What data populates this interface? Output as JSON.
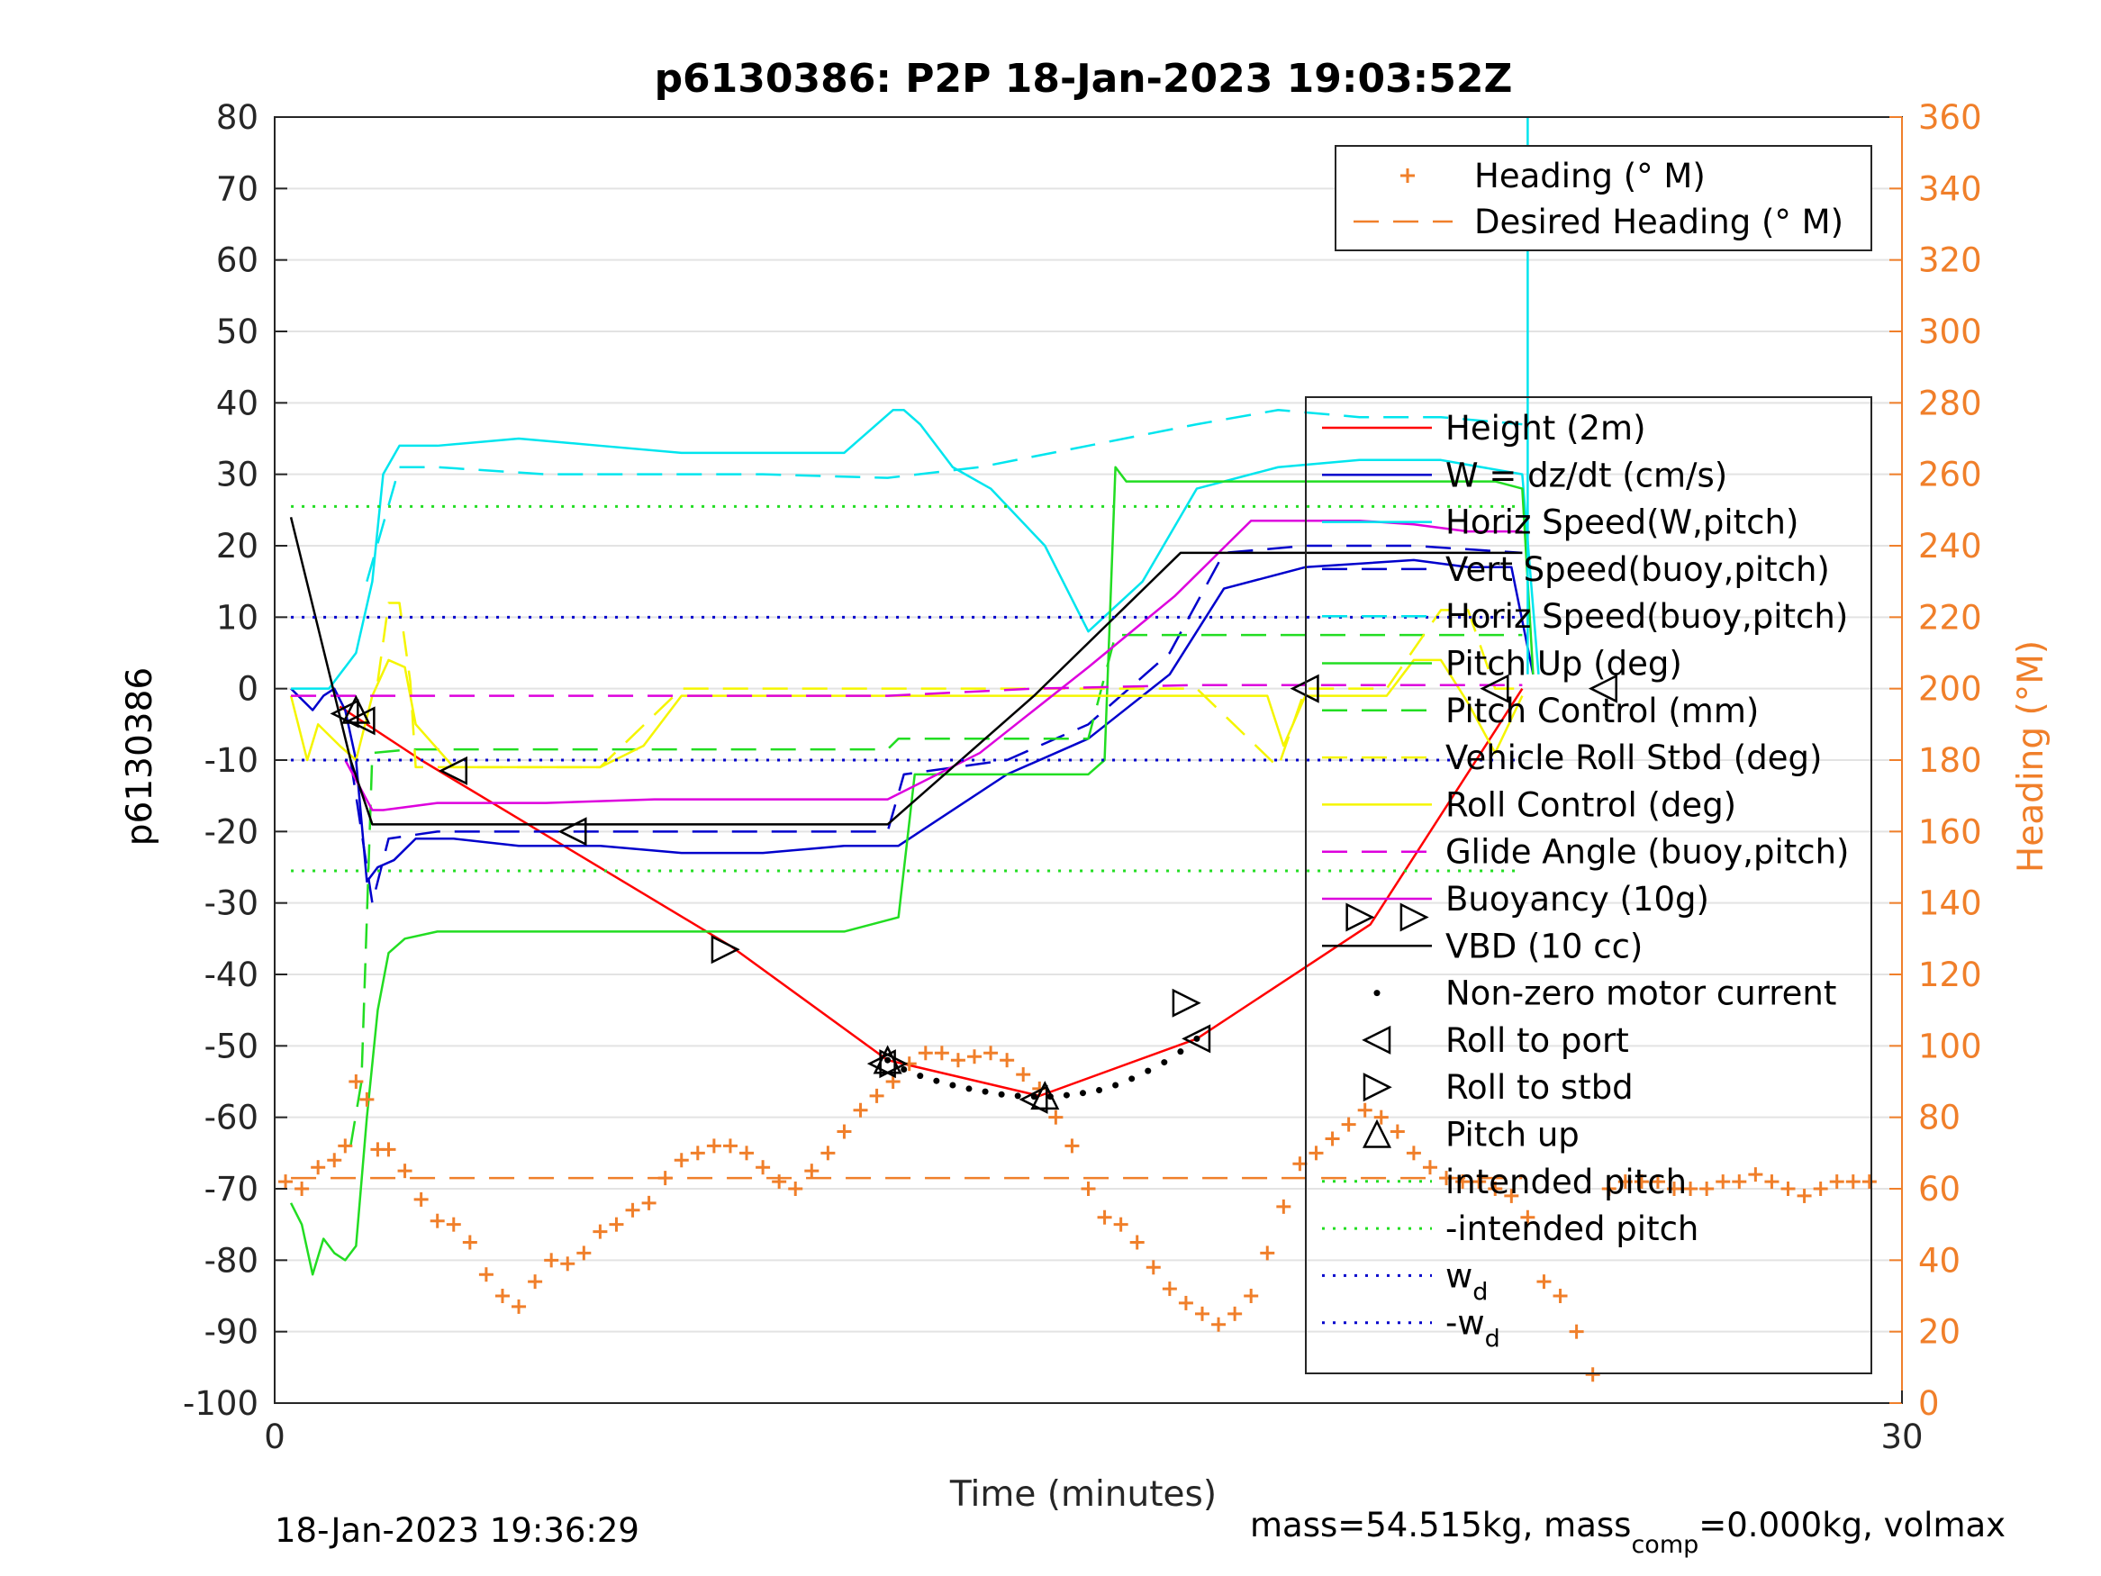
{
  "chart_data": {
    "type": "line",
    "title": "p6130386: P2P 18-Jan-2023 19:03:52Z",
    "xlabel": "Time (minutes)",
    "ylabel_left": "p6130386",
    "ylabel_right": "Heading (°M)",
    "xlim": [
      0,
      30
    ],
    "ylim_left": [
      -100,
      80
    ],
    "ylim_right": [
      0,
      360
    ],
    "x_ticks": [
      "0",
      "30"
    ],
    "y_ticks_left": [
      "80",
      "70",
      "60",
      "50",
      "40",
      "30",
      "20",
      "10",
      "0",
      "-10",
      "-20",
      "-30",
      "-40",
      "-50",
      "-60",
      "-70",
      "-80",
      "-90",
      "-100"
    ],
    "y_ticks_right": [
      "360",
      "340",
      "320",
      "300",
      "280",
      "260",
      "240",
      "220",
      "200",
      "180",
      "160",
      "140",
      "120",
      "100",
      "80",
      "60",
      "40",
      "20",
      "0"
    ],
    "grid": true,
    "footer_left": "18-Jan-2023 19:36:29",
    "footer_right": {
      "a": "mass=54.515kg, mass",
      "sub": "comp",
      "b": "=0.000kg, volmax"
    },
    "legend_top": [
      {
        "label": "Heading (° M)",
        "color": "#f07f2a",
        "style": "plus"
      },
      {
        "label": "Desired Heading (° M)",
        "color": "#f07f2a",
        "style": "dashed"
      }
    ],
    "legend_main": [
      {
        "label": "Height (2m)",
        "color": "#ff0000",
        "style": "solid"
      },
      {
        "label": "W = dz/dt (cm/s)",
        "color": "#0000cc",
        "style": "solid"
      },
      {
        "label": "Horiz Speed(W,pitch)",
        "color": "#00e5ee",
        "style": "solid"
      },
      {
        "label": "Vert Speed(buoy,pitch)",
        "color": "#0000cc",
        "style": "dashed"
      },
      {
        "label": "Horiz Speed(buoy,pitch)",
        "color": "#00e5ee",
        "style": "dashed"
      },
      {
        "label": "Pitch Up (deg)",
        "color": "#22dd22",
        "style": "solid"
      },
      {
        "label": "Pitch Control (mm)",
        "color": "#22dd22",
        "style": "dashed"
      },
      {
        "label": "Vehicle Roll Stbd (deg)",
        "color": "#f5f500",
        "style": "dashed"
      },
      {
        "label": "Roll Control (deg)",
        "color": "#f5f500",
        "style": "solid"
      },
      {
        "label": "Glide Angle (buoy,pitch)",
        "color": "#dd00dd",
        "style": "dashed"
      },
      {
        "label": "Buoyancy (10g)",
        "color": "#dd00dd",
        "style": "solid"
      },
      {
        "label": "VBD (10 cc)",
        "color": "#000000",
        "style": "solid"
      },
      {
        "label": "Non-zero motor current",
        "color": "#000000",
        "style": "dot"
      },
      {
        "label": "Roll to port",
        "color": "#000000",
        "style": "tri-left"
      },
      {
        "label": "Roll to stbd",
        "color": "#000000",
        "style": "tri-right"
      },
      {
        "label": "Pitch up",
        "color": "#000000",
        "style": "tri-up"
      },
      {
        "label": "intended pitch",
        "color": "#22dd22",
        "style": "dotted"
      },
      {
        "label": "-intended pitch",
        "color": "#22dd22",
        "style": "dotted"
      },
      {
        "label": "w",
        "sub": "d",
        "color": "#0000cc",
        "style": "dotted"
      },
      {
        "label": "-w",
        "sub": "d",
        "color": "#0000cc",
        "style": "dotted"
      }
    ],
    "series": [
      {
        "name": "Height (2m)",
        "color": "#ff0000",
        "style": "solid",
        "x": [
          1.2,
          2.7,
          8.4,
          11.3,
          14.1,
          17.0,
          20.2,
          23.0
        ],
        "y": [
          -2.5,
          -10,
          -36,
          -52,
          -57,
          -49,
          -33,
          0
        ]
      },
      {
        "name": "W = dz/dt (cm/s)",
        "color": "#0000cc",
        "style": "solid",
        "x": [
          0.3,
          0.7,
          0.9,
          1.1,
          1.3,
          1.5,
          1.7,
          1.9,
          2.2,
          2.6,
          3.3,
          4.5,
          6.0,
          7.5,
          9.0,
          10.5,
          11.5,
          13.5,
          15.0,
          16.5,
          17.5,
          19.0,
          21.0,
          22.0,
          22.8,
          23.2
        ],
        "y": [
          0,
          -3,
          -1,
          0,
          -3,
          -10,
          -27,
          -25,
          -24,
          -21,
          -21,
          -22,
          -22,
          -23,
          -23,
          -22,
          -22,
          -12,
          -7,
          2,
          14,
          17,
          18,
          17,
          17,
          2
        ]
      },
      {
        "name": "Horiz Speed(W,pitch)",
        "color": "#00e5ee",
        "style": "solid",
        "x": [
          0.3,
          1.0,
          1.5,
          1.8,
          2.0,
          2.3,
          3.0,
          4.5,
          6.0,
          7.5,
          9.0,
          10.5,
          11.4,
          11.6,
          11.9,
          12.5,
          13.2,
          14.2,
          15.0,
          16.0,
          17.0,
          18.5,
          20.0,
          21.5,
          23.0,
          23.3
        ],
        "y": [
          0,
          0,
          5,
          15,
          30,
          34,
          34,
          35,
          34,
          33,
          33,
          33,
          39,
          39,
          37,
          31,
          28,
          20,
          8,
          15,
          28,
          31,
          32,
          32,
          30,
          2
        ]
      },
      {
        "name": "Vert Speed(buoy,pitch)",
        "color": "#0000cc",
        "style": "dashed",
        "x": [
          1.4,
          1.8,
          2.1,
          3.0,
          5.0,
          7.0,
          9.0,
          11.3,
          11.6,
          13.5,
          15.0,
          16.5,
          17.5,
          19.0,
          21.0,
          23.0
        ],
        "y": [
          -10,
          -30,
          -21,
          -20,
          -20,
          -20,
          -20,
          -20,
          -12,
          -10,
          -5,
          5,
          19,
          20,
          20,
          19
        ]
      },
      {
        "name": "Horiz Speed(buoy,pitch)",
        "color": "#00e5ee",
        "style": "dashed",
        "x": [
          1.7,
          2.3,
          3.0,
          5.0,
          7.0,
          9.0,
          11.3,
          13.0,
          15.0,
          17.0,
          18.5,
          20.0,
          21.5,
          23.0
        ],
        "y": [
          15,
          31,
          31,
          30,
          30,
          30,
          29.5,
          31,
          34,
          37,
          39,
          38,
          38,
          37
        ]
      },
      {
        "name": "Pitch Up (deg)",
        "color": "#22dd22",
        "style": "solid",
        "x": [
          0.3,
          0.5,
          0.7,
          0.9,
          1.1,
          1.3,
          1.5,
          1.7,
          1.9,
          2.1,
          2.4,
          3.0,
          4.5,
          6.0,
          7.5,
          9.0,
          10.5,
          11.5,
          11.8,
          12.5,
          14.0,
          15.0,
          15.3,
          15.5,
          15.7,
          16.5,
          18.0,
          19.5,
          21.0,
          22.5,
          23.0,
          23.2
        ],
        "y": [
          -72,
          -75,
          -82,
          -77,
          -79,
          -80,
          -78,
          -60,
          -45,
          -37,
          -35,
          -34,
          -34,
          -34,
          -34,
          -34,
          -34,
          -32,
          -12,
          -12,
          -12,
          -12,
          -10,
          31,
          29,
          29,
          29,
          29,
          29,
          29,
          28,
          2
        ]
      },
      {
        "name": "Pitch Control (mm)",
        "color": "#22dd22",
        "style": "dashed",
        "x": [
          1.4,
          1.6,
          1.8,
          2.5,
          4.0,
          6.0,
          8.0,
          10.0,
          11.3,
          11.5,
          13.0,
          15.0,
          15.5,
          17.0,
          19.0,
          21.0,
          23.0
        ],
        "y": [
          -64,
          -55,
          -9,
          -8.5,
          -8.5,
          -8.5,
          -8.5,
          -8.5,
          -8.5,
          -7,
          -7,
          -7,
          7.5,
          7.5,
          7.5,
          7.5,
          7.5
        ]
      },
      {
        "name": "Vehicle Roll Stbd (deg)",
        "color": "#f5f500",
        "style": "dashed",
        "x": [
          1.9,
          2.1,
          2.3,
          2.5,
          2.6,
          3.3,
          4.5,
          6.0,
          7.5,
          9.0,
          10.5,
          11.5,
          13.0,
          15.0,
          17.0,
          18.5,
          19.0,
          20.5,
          21.5,
          22.0,
          22.5,
          23.0
        ],
        "y": [
          1,
          12,
          12,
          1,
          -11,
          -11,
          -11,
          -11,
          0,
          0,
          0,
          0,
          0,
          0,
          0,
          -11,
          0,
          0,
          11,
          11,
          0,
          0
        ]
      },
      {
        "name": "Roll Control (deg)",
        "color": "#f5f500",
        "style": "solid",
        "x": [
          0.3,
          0.6,
          0.8,
          1.2,
          1.5,
          1.8,
          2.1,
          2.4,
          2.6,
          3.3,
          4.5,
          6.0,
          6.8,
          7.5,
          9.0,
          10.5,
          11.5,
          13.0,
          15.0,
          17.0,
          18.3,
          18.6,
          19.0,
          20.5,
          21.0,
          21.5,
          22.0,
          22.5,
          23.0
        ],
        "y": [
          -1,
          -10,
          -5,
          -8,
          -10,
          -1,
          4,
          3,
          -5,
          -11,
          -11,
          -11,
          -8,
          -1,
          -1,
          -1,
          -1,
          -1,
          -1,
          -1,
          -1,
          -8,
          -1,
          -1,
          4,
          4,
          -2,
          -9,
          -1
        ]
      },
      {
        "name": "Glide Angle (buoy,pitch)",
        "color": "#dd00dd",
        "style": "dashed",
        "x": [
          0.3,
          2.0,
          5.0,
          8.0,
          11.3,
          14.0,
          17.0,
          20.0,
          23.0
        ],
        "y": [
          -1,
          -1,
          -1,
          -1,
          -1,
          0,
          0.5,
          0.5,
          0.5
        ]
      },
      {
        "name": "Buoyancy (10g)",
        "color": "#dd00dd",
        "style": "solid",
        "x": [
          1.3,
          1.8,
          2.0,
          3.0,
          5.0,
          7.0,
          9.0,
          11.3,
          13.0,
          15.0,
          16.6,
          18.0,
          20.0,
          21.0,
          22.0,
          23.0
        ],
        "y": [
          -10,
          -17,
          -17,
          -16,
          -16,
          -15.5,
          -15.5,
          -15.5,
          -9,
          3,
          13,
          23.5,
          23.5,
          23,
          22,
          22
        ]
      },
      {
        "name": "VBD (10 cc)",
        "color": "#000000",
        "style": "solid",
        "x": [
          0.3,
          1.4,
          1.8,
          5.0,
          8.0,
          11.3,
          14.0,
          16.7,
          18.0,
          21.0,
          23.0
        ],
        "y": [
          24,
          -10,
          -19,
          -19,
          -19,
          -19,
          -1,
          19,
          19,
          19,
          19
        ]
      },
      {
        "name": "Non-zero motor current",
        "color": "#000000",
        "style": "dot",
        "x": [
          11.3,
          11.6,
          11.9,
          12.2,
          12.5,
          12.8,
          13.1,
          13.4,
          13.7,
          14.0,
          14.3,
          14.6,
          14.9,
          15.2,
          15.5,
          15.8,
          16.1,
          16.4,
          16.7,
          17.0
        ],
        "y": [
          -52,
          -53.3,
          -54.2,
          -54.9,
          -55.5,
          -56,
          -56.4,
          -56.8,
          -57,
          -57.1,
          -57.1,
          -56.9,
          -56.6,
          -56.2,
          -55.5,
          -54.6,
          -53.5,
          -52.3,
          -50.8,
          -49
        ]
      },
      {
        "name": "Roll to port",
        "color": "#000000",
        "style": "tri-left",
        "x": [
          1.3,
          1.6,
          3.3,
          5.5,
          11.2,
          14.0,
          17.0,
          22.5,
          24.5,
          19.0
        ],
        "y": [
          -3.5,
          -4.5,
          -11.5,
          -20,
          -52.5,
          -57.5,
          -49,
          0,
          0,
          0
        ],
        "note": ""
      },
      {
        "name": "Roll to stbd",
        "color": "#000000",
        "style": "tri-right",
        "x": [
          8.3,
          11.4,
          16.8,
          20.0,
          21.0
        ],
        "y": [
          -36.5,
          -52.5,
          -44,
          -32,
          -32
        ]
      },
      {
        "name": "Pitch up",
        "color": "#000000",
        "style": "tri-up",
        "x": [
          1.5,
          11.3,
          14.2
        ],
        "y": [
          -3,
          -52,
          -57
        ]
      },
      {
        "name": "intended pitch",
        "color": "#22dd22",
        "style": "dotted",
        "x": [
          0.3,
          23.0
        ],
        "y": [
          25.5,
          25.5
        ]
      },
      {
        "name": "-intended pitch",
        "color": "#22dd22",
        "style": "dotted",
        "x": [
          0.3,
          23.0
        ],
        "y": [
          -25.5,
          -25.5
        ]
      },
      {
        "name": "w_d",
        "color": "#0000cc",
        "style": "dotted",
        "x": [
          0.3,
          23.0
        ],
        "y": [
          10,
          10
        ]
      },
      {
        "name": "-w_d",
        "color": "#0000cc",
        "style": "dotted",
        "x": [
          0.3,
          23.0
        ],
        "y": [
          -10,
          -10
        ]
      },
      {
        "name": "Desired Heading (° M)",
        "color": "#f07f2a",
        "style": "dashed",
        "axis": "right",
        "x": [
          0.3,
          23.0
        ],
        "y": [
          63,
          63
        ]
      }
    ],
    "heading": {
      "color": "#f07f2a",
      "x": [
        0.2,
        0.5,
        0.8,
        1.1,
        1.3,
        1.5,
        1.7,
        1.9,
        2.1,
        2.4,
        2.7,
        3.0,
        3.3,
        3.6,
        3.9,
        4.2,
        4.5,
        4.8,
        5.1,
        5.4,
        5.7,
        6.0,
        6.3,
        6.6,
        6.9,
        7.2,
        7.5,
        7.8,
        8.1,
        8.4,
        8.7,
        9.0,
        9.3,
        9.6,
        9.9,
        10.2,
        10.5,
        10.8,
        11.1,
        11.4,
        11.7,
        12.0,
        12.3,
        12.6,
        12.9,
        13.2,
        13.5,
        13.8,
        14.1,
        14.4,
        14.7,
        15.0,
        15.3,
        15.6,
        15.9,
        16.2,
        16.5,
        16.8,
        17.1,
        17.4,
        17.7,
        18.0,
        18.3,
        18.6,
        18.9,
        19.2,
        19.5,
        19.8,
        20.1,
        20.4,
        20.7,
        21.0,
        21.3,
        21.6,
        21.9,
        22.2,
        22.5,
        22.8,
        23.1,
        23.4,
        23.7,
        24.0,
        24.3,
        24.6,
        24.9,
        25.2,
        25.5,
        25.8,
        26.1,
        26.4,
        26.7,
        27.0,
        27.3,
        27.6,
        27.9,
        28.2,
        28.5,
        28.8,
        29.1,
        29.4
      ],
      "y": [
        62,
        60,
        66,
        68,
        72,
        90,
        85,
        71,
        71,
        65,
        57,
        51,
        50,
        45,
        36,
        30,
        27,
        34,
        40,
        39,
        42,
        48,
        50,
        54,
        56,
        63,
        68,
        70,
        72,
        72,
        70,
        66,
        62,
        60,
        65,
        70,
        76,
        82,
        86,
        90,
        95,
        98,
        98,
        96,
        97,
        98,
        96,
        92,
        88,
        80,
        72,
        60,
        52,
        50,
        45,
        38,
        32,
        28,
        25,
        22,
        25,
        30,
        42,
        55,
        67,
        70,
        74,
        78,
        82,
        80,
        76,
        70,
        66,
        63,
        62,
        62,
        60,
        58,
        52,
        34,
        30,
        20,
        8,
        60,
        62,
        62,
        62,
        60,
        60,
        60,
        62,
        62,
        64,
        62,
        60,
        58,
        60,
        62,
        62,
        62
      ]
    }
  }
}
